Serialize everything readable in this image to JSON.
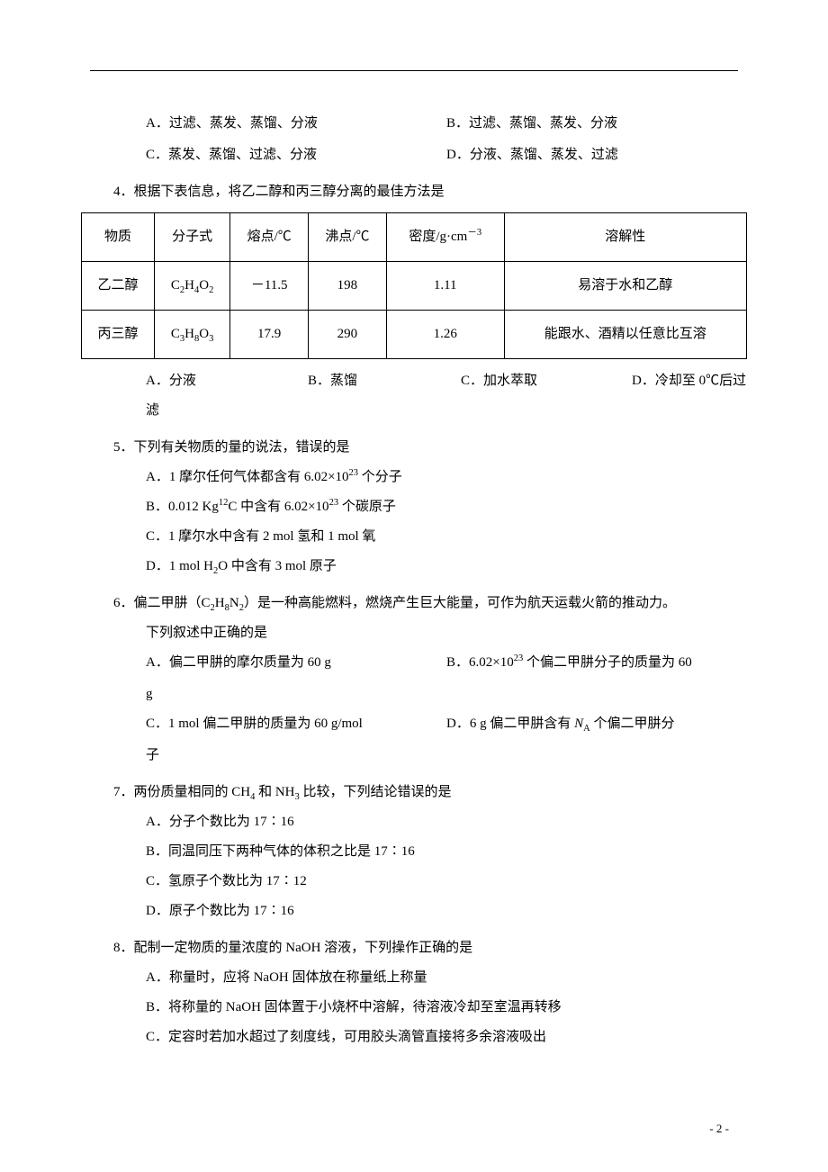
{
  "q3": {
    "optA": "A．过滤、蒸发、蒸馏、分液",
    "optB": "B．过滤、蒸馏、蒸发、分液",
    "optC": "C．蒸发、蒸馏、过滤、分液",
    "optD": "D．分液、蒸馏、蒸发、过滤"
  },
  "q4": {
    "stem": "4．根据下表信息，将乙二醇和丙三醇分离的最佳方法是",
    "table": {
      "headers": [
        "物质",
        "分子式",
        "熔点/℃",
        "沸点/℃",
        "溶解性"
      ],
      "density_header_pre": "密度/g·cm",
      "density_header_sup": "－3",
      "rows": [
        {
          "name": "乙二醇",
          "formula_parts": [
            "C",
            "2",
            "H",
            "4",
            "O",
            "2"
          ],
          "melting": "－11.5",
          "boiling": "198",
          "density": "1.11",
          "solubility": "易溶于水和乙醇"
        },
        {
          "name": "丙三醇",
          "formula_parts": [
            "C",
            "3",
            "H",
            "8",
            "O",
            "3"
          ],
          "melting": "17.9",
          "boiling": "290",
          "density": "1.26",
          "solubility": "能跟水、酒精以任意比互溶"
        }
      ]
    },
    "optA": "A．分液",
    "optB": "B．蒸馏",
    "optC": "C．加水萃取",
    "optD": "D．冷却至 0℃后过",
    "optD_cont": "滤"
  },
  "q5": {
    "stem": "5．下列有关物质的量的说法，错误的是",
    "A_pre": "A．1 摩尔任何气体都含有 6.02×10",
    "A_sup": "23",
    "A_post": " 个分子",
    "B_pre": "B．0.012 Kg",
    "B_sup1": "12",
    "B_mid": "C 中含有 6.02×10",
    "B_sup2": "23",
    "B_post": " 个碳原子",
    "C": "C．1 摩尔水中含有 2 mol 氢和 1 mol 氧",
    "D_pre": "D．1 mol H",
    "D_sub": "2",
    "D_post": "O 中含有 3 mol 原子"
  },
  "q6": {
    "stem_pre": "6．偏二甲肼（C",
    "s1": "2",
    "stem_m1": "H",
    "s2": "8",
    "stem_m2": "N",
    "s3": "2",
    "stem_post": "）是一种高能燃料，燃烧产生巨大能量，可作为航天运载火箭的推动力。",
    "stem_line2": "下列叙述中正确的是",
    "A": "A．偏二甲肼的摩尔质量为 60 g",
    "B_pre": "B．6.02×10",
    "B_sup": "23",
    "B_post": " 个偏二甲肼分子的质量为 60",
    "B_cont": "g",
    "C": "C．1 mol 偏二甲肼的质量为 60 g/mol",
    "D_pre": "D．6 g 偏二甲肼含有 ",
    "D_na": "N",
    "D_nasub": "A",
    "D_post": " 个偏二甲肼分",
    "D_cont": "子"
  },
  "q7": {
    "stem_pre": "7．两份质量相同的 CH",
    "s1": "4",
    "stem_mid": " 和 NH",
    "s2": "3",
    "stem_post": " 比较，下列结论错误的是",
    "A": "A．分子个数比为 17∶16",
    "B": "B．同温同压下两种气体的体积之比是 17∶16",
    "C": "C．氢原子个数比为 17∶12",
    "D": "D．原子个数比为 17∶16"
  },
  "q8": {
    "stem": "8．配制一定物质的量浓度的 NaOH 溶液，下列操作正确的是",
    "A": "A．称量时，应将 NaOH 固体放在称量纸上称量",
    "B": "B．将称量的 NaOH 固体置于小烧杯中溶解，待溶液冷却至室温再转移",
    "C": "C．定容时若加水超过了刻度线，可用胶头滴管直接将多余溶液吸出"
  },
  "footer": "- 2 -"
}
